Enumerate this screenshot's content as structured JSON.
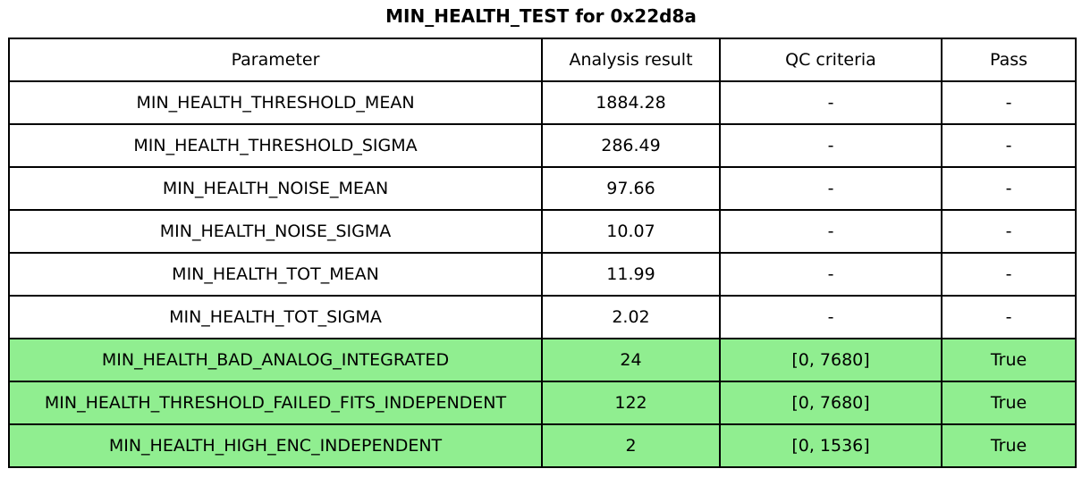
{
  "title": "MIN_HEALTH_TEST for 0x22d8a",
  "colors": {
    "pass_row_bg": "#90EE90",
    "border": "#000000",
    "text": "#000000",
    "background": "#ffffff"
  },
  "chart_data": {
    "type": "table",
    "title": "MIN_HEALTH_TEST for 0x22d8a",
    "columns": [
      "Parameter",
      "Analysis result",
      "QC criteria",
      "Pass"
    ],
    "rows": [
      {
        "parameter": "MIN_HEALTH_THRESHOLD_MEAN",
        "result": "1884.28",
        "qc": "-",
        "pass": "-",
        "highlight": false
      },
      {
        "parameter": "MIN_HEALTH_THRESHOLD_SIGMA",
        "result": "286.49",
        "qc": "-",
        "pass": "-",
        "highlight": false
      },
      {
        "parameter": "MIN_HEALTH_NOISE_MEAN",
        "result": "97.66",
        "qc": "-",
        "pass": "-",
        "highlight": false
      },
      {
        "parameter": "MIN_HEALTH_NOISE_SIGMA",
        "result": "10.07",
        "qc": "-",
        "pass": "-",
        "highlight": false
      },
      {
        "parameter": "MIN_HEALTH_TOT_MEAN",
        "result": "11.99",
        "qc": "-",
        "pass": "-",
        "highlight": false
      },
      {
        "parameter": "MIN_HEALTH_TOT_SIGMA",
        "result": "2.02",
        "qc": "-",
        "pass": "-",
        "highlight": false
      },
      {
        "parameter": "MIN_HEALTH_BAD_ANALOG_INTEGRATED",
        "result": "24",
        "qc": "[0, 7680]",
        "pass": "True",
        "highlight": true
      },
      {
        "parameter": "MIN_HEALTH_THRESHOLD_FAILED_FITS_INDEPENDENT",
        "result": "122",
        "qc": "[0, 7680]",
        "pass": "True",
        "highlight": true
      },
      {
        "parameter": "MIN_HEALTH_HIGH_ENC_INDEPENDENT",
        "result": "2",
        "qc": "[0, 1536]",
        "pass": "True",
        "highlight": true
      }
    ]
  }
}
